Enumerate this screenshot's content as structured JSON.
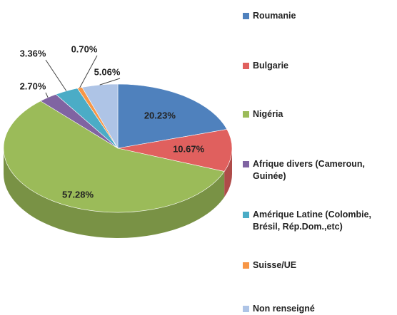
{
  "chart_data": {
    "type": "pie3d",
    "categories": [
      "Roumanie",
      "Bulgarie",
      "Nigéria",
      "Afrique divers (Cameroun, Guinée)",
      "Amérique Latine (Colombie, Brésil, Rép.Dom.,etc)",
      "Suisse/UE",
      "Non renseigné"
    ],
    "values": [
      20.23,
      10.67,
      57.28,
      2.7,
      3.36,
      0.7,
      5.06
    ],
    "value_labels": [
      "20.23%",
      "10.67%",
      "57.28%",
      "2.70%",
      "3.36%",
      "0.70%",
      "5.06%"
    ],
    "colors": [
      "#4f81bd",
      "#e0605e",
      "#9bbb59",
      "#8064a2",
      "#4bacc6",
      "#f79646",
      "#aec4e6"
    ],
    "legend": "right"
  }
}
